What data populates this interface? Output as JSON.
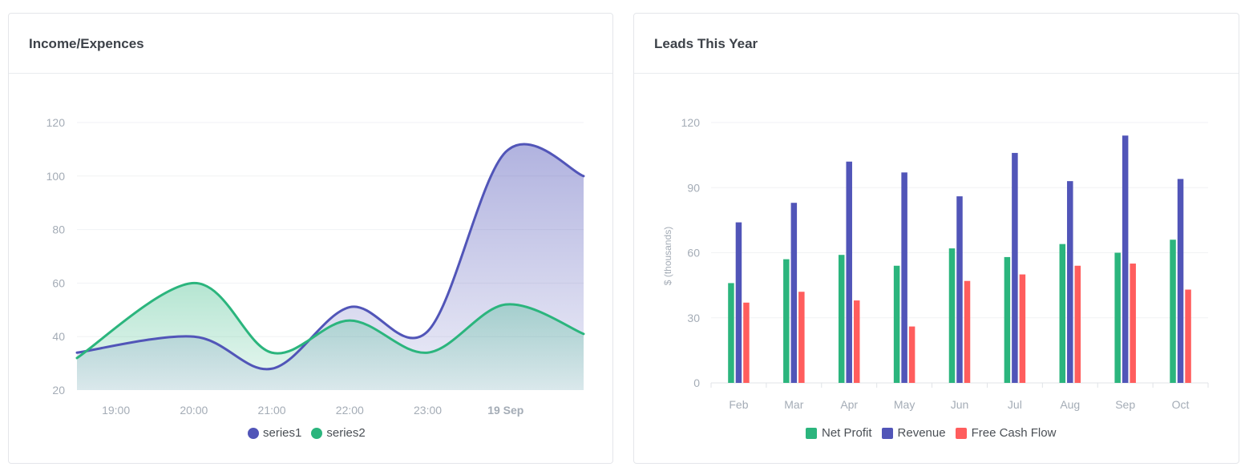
{
  "left_card": {
    "title": "Income/Expences",
    "legend": [
      {
        "name": "series1",
        "color": "#5155b8"
      },
      {
        "name": "series2",
        "color": "#2bb57d"
      }
    ]
  },
  "right_card": {
    "title": "Leads This Year",
    "legend": [
      {
        "name": "Net Profit",
        "color": "#2bb57d"
      },
      {
        "name": "Revenue",
        "color": "#5155b8"
      },
      {
        "name": "Free Cash Flow",
        "color": "#ff5d5d"
      }
    ]
  },
  "chart_data": [
    {
      "type": "area",
      "title": "Income/Expences",
      "x_ticks": [
        "19:00",
        "20:00",
        "21:00",
        "22:00",
        "23:00",
        "19 Sep"
      ],
      "x": [
        "18:30",
        "20:00",
        "21:00",
        "22:00",
        "23:00",
        "00:00",
        "01:00"
      ],
      "ylim": [
        20,
        120
      ],
      "y_ticks": [
        20,
        40,
        60,
        80,
        100,
        120
      ],
      "series": [
        {
          "name": "series1",
          "values": [
            34,
            40,
            28,
            51,
            42,
            109,
            100
          ],
          "color": "#5155b8"
        },
        {
          "name": "series2",
          "values": [
            32,
            60,
            34,
            46,
            34,
            52,
            41
          ],
          "color": "#2bb57d"
        }
      ]
    },
    {
      "type": "bar",
      "title": "Leads This Year",
      "categories": [
        "Feb",
        "Mar",
        "Apr",
        "May",
        "Jun",
        "Jul",
        "Aug",
        "Sep",
        "Oct"
      ],
      "ylabel": "$ (thousands)",
      "ylim": [
        0,
        120
      ],
      "y_ticks": [
        0,
        30,
        60,
        90,
        120
      ],
      "series": [
        {
          "name": "Net Profit",
          "values": [
            46,
            57,
            59,
            54,
            62,
            58,
            64,
            60,
            66
          ],
          "color": "#2bb57d"
        },
        {
          "name": "Revenue",
          "values": [
            74,
            83,
            102,
            97,
            86,
            106,
            93,
            114,
            94
          ],
          "color": "#5155b8"
        },
        {
          "name": "Free Cash Flow",
          "values": [
            37,
            42,
            38,
            26,
            47,
            50,
            54,
            55,
            43
          ],
          "color": "#ff5d5d"
        }
      ]
    }
  ]
}
